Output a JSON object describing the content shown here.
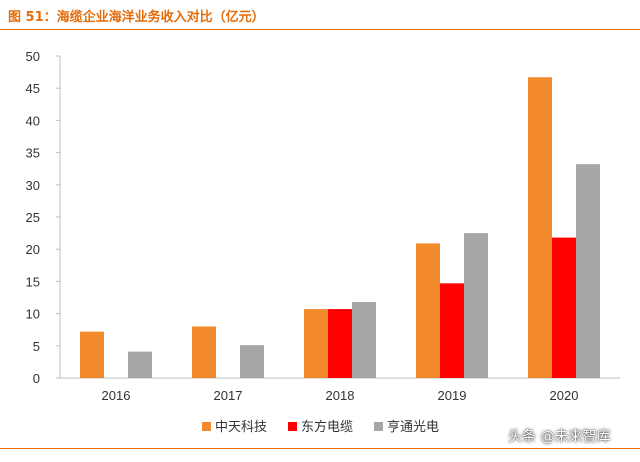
{
  "figure_title": "图 51：海缆企业海洋业务收入对比（亿元）",
  "watermark": "头条 @未来智库",
  "chart_data": {
    "type": "bar",
    "title": "海缆企业海洋业务收入对比（亿元）",
    "categories": [
      "2016",
      "2017",
      "2018",
      "2019",
      "2020"
    ],
    "series": [
      {
        "name": "中天科技",
        "color": "#f28a2c",
        "values": [
          7.2,
          8.0,
          10.7,
          20.9,
          46.7
        ]
      },
      {
        "name": "东方电缆",
        "color": "#ff0000",
        "values": [
          null,
          null,
          10.7,
          14.7,
          21.8
        ]
      },
      {
        "name": "亨通光电",
        "color": "#a6a6a6",
        "values": [
          4.1,
          5.1,
          11.8,
          22.5,
          33.2
        ]
      }
    ],
    "ylim": [
      0,
      50
    ],
    "yticks": [
      0,
      5,
      10,
      15,
      20,
      25,
      30,
      35,
      40,
      45,
      50
    ],
    "grid": false,
    "legend_position": "bottom-center"
  }
}
